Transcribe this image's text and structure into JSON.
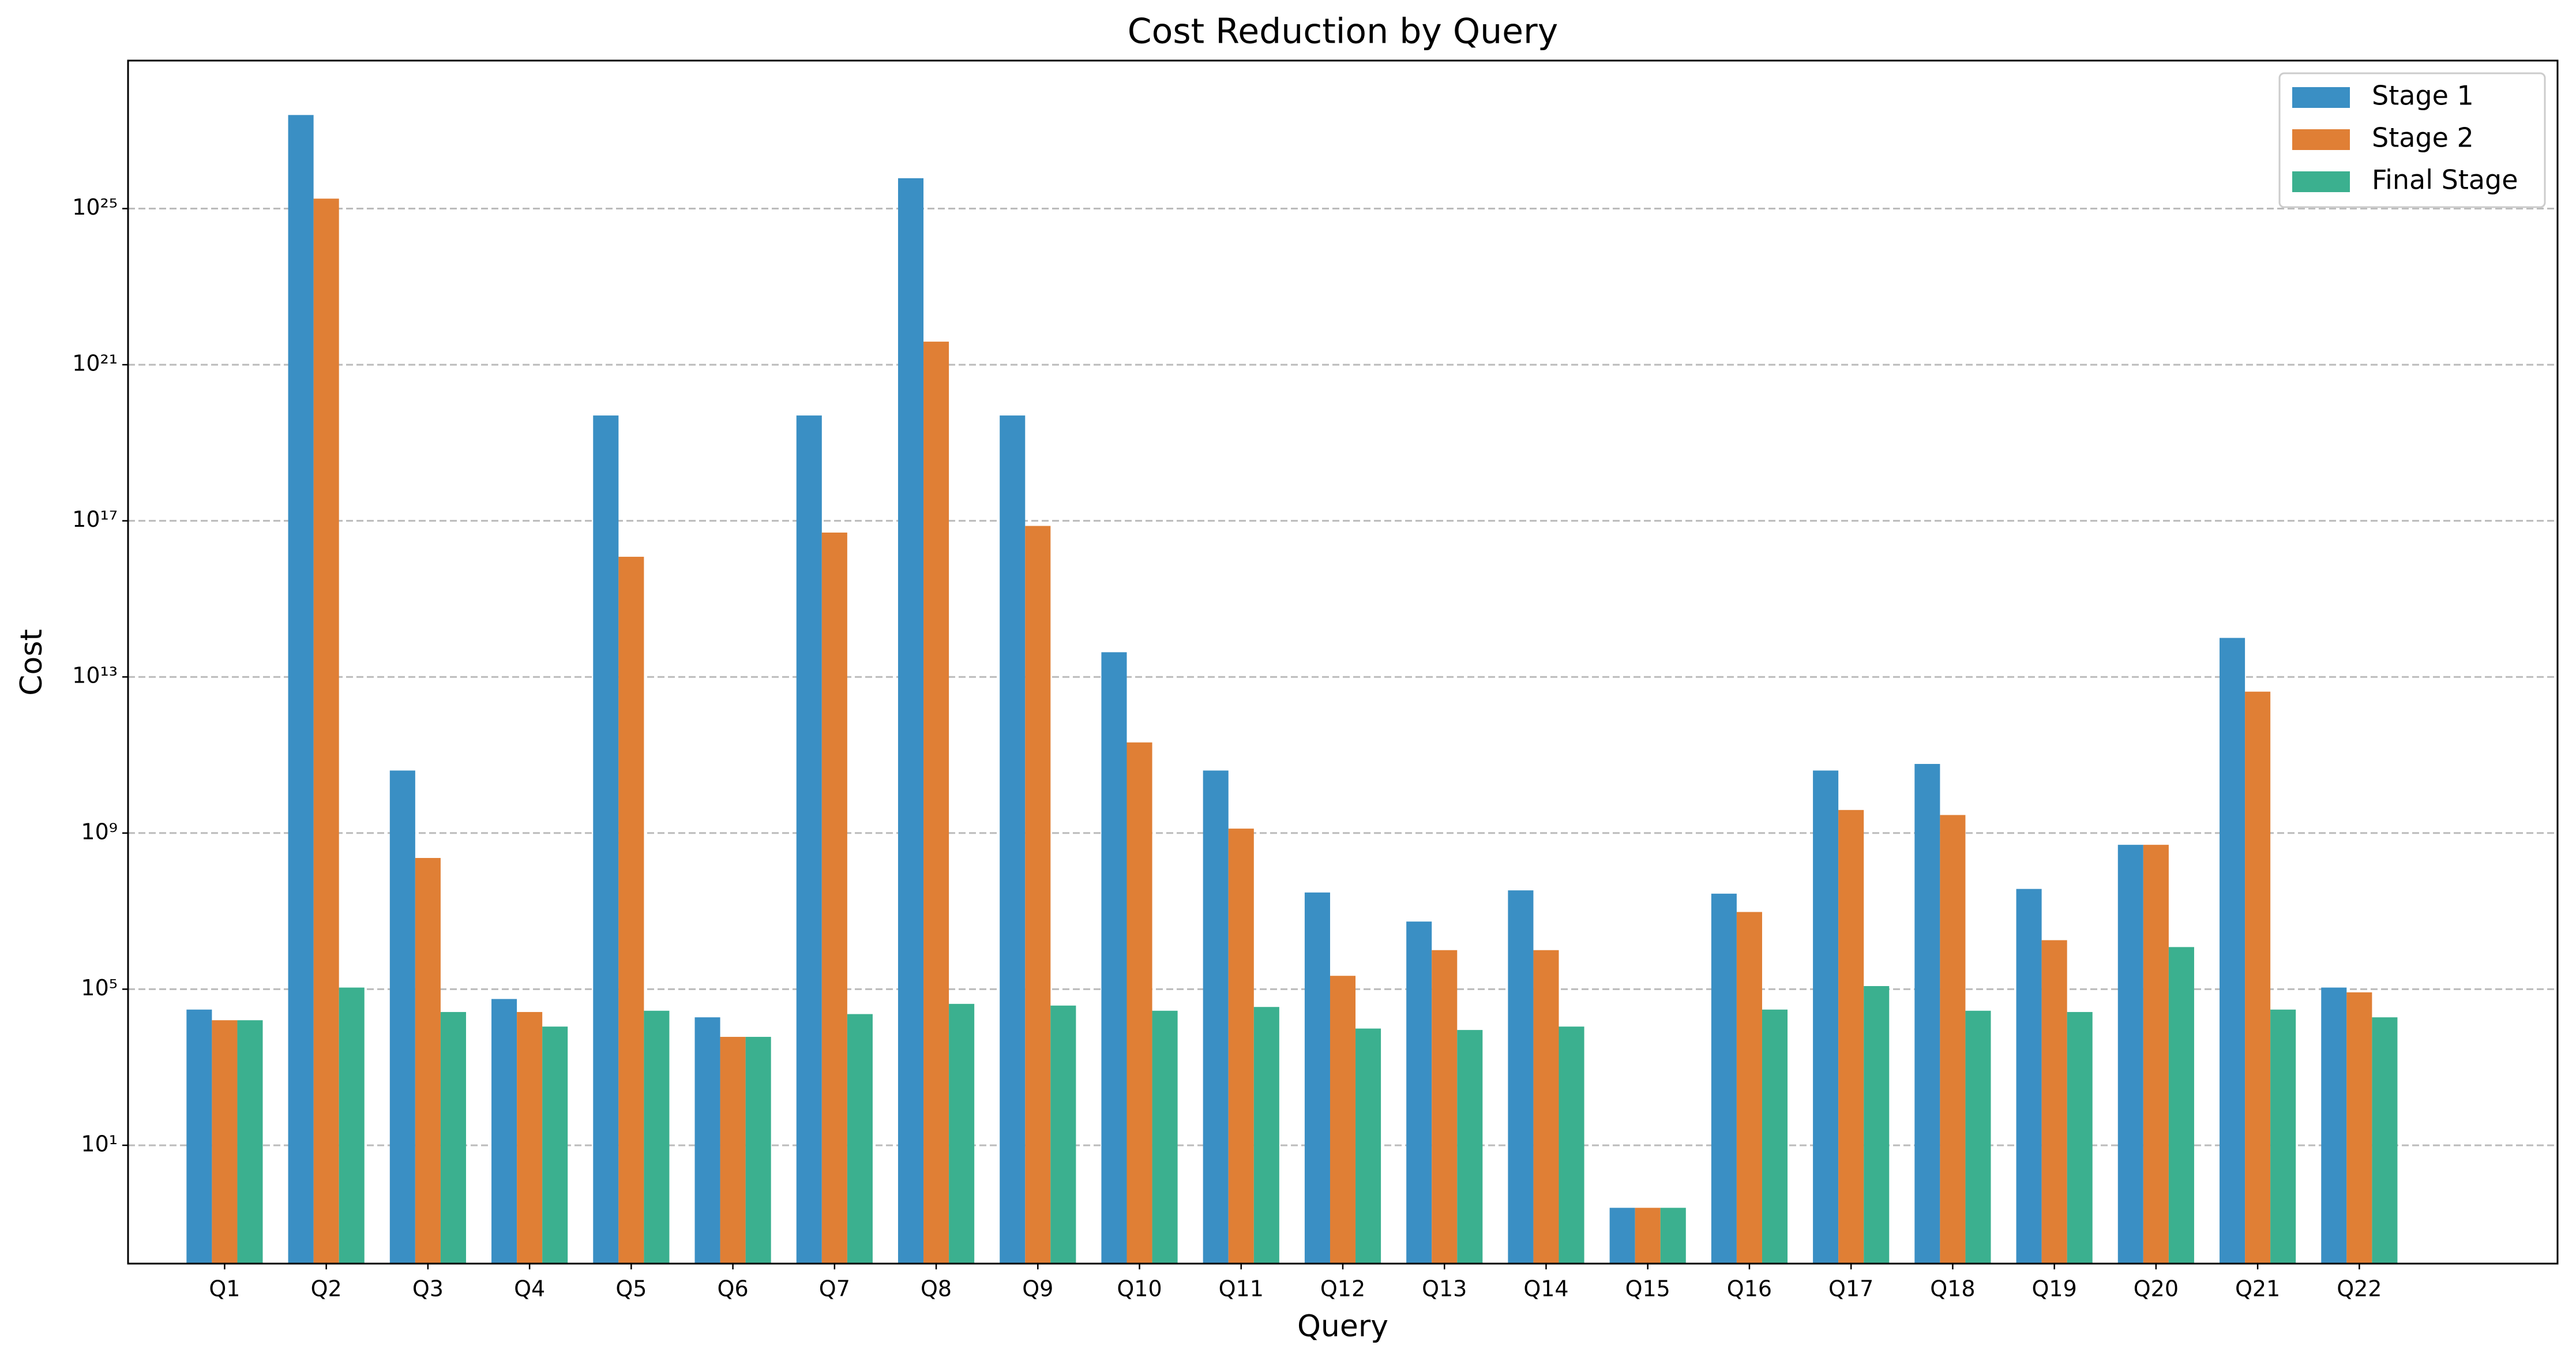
{
  "chart_data": {
    "type": "bar",
    "title": "Cost Reduction by Query",
    "x_label": "Query",
    "y_label": "Cost",
    "log_scale": true,
    "grid": true,
    "legend": "upper right",
    "categories": [
      "Q1",
      "Q2",
      "Q3",
      "Q4",
      "Q5",
      "Q6",
      "Q7",
      "Q8",
      "Q9",
      "Q10",
      "Q11",
      "Q12",
      "Q13",
      "Q14",
      "Q15",
      "Q16",
      "Q17",
      "Q18",
      "Q19",
      "Q20",
      "Q21",
      "Q22"
    ],
    "series": [
      {
        "name": "Stage 1",
        "color": "#3a8fc4",
        "values": [
          30000.0,
          2.5e+27,
          40000000000.0,
          56000.0,
          5e+19,
          19000.0,
          5e+19,
          6e+25,
          5e+19,
          43000000000000.0,
          40000000000.0,
          30000000.0,
          5400000.0,
          34000000.0,
          0.25,
          28000000.0,
          40000000000.0,
          59000000000.0,
          37000000.0,
          500000000.0,
          100000000000000.0,
          110000.0
        ]
      },
      {
        "name": "Stage 2",
        "color": "#e07f35",
        "values": [
          16000.0,
          1.8e+25,
          230000000.0,
          26000.0,
          1.2e+16,
          6000.0,
          5e+16,
          3.9e+21,
          7.4e+16,
          210000000000.0,
          1300000000.0,
          220000.0,
          1000000.0,
          1000000.0,
          0.25,
          9500000.0,
          3900000000.0,
          2900000000.0,
          1800000.0,
          500000000.0,
          4200000000000.0,
          83000.0
        ]
      },
      {
        "name": "Final Stage",
        "color": "#3bb08f",
        "values": [
          16000.0,
          110000.0,
          26000.0,
          11000.0,
          28000.0,
          6000.0,
          23000.0,
          42000.0,
          38000.0,
          28000.0,
          35000.0,
          9800.0,
          9000.0,
          11000.0,
          0.25,
          30000.0,
          120000.0,
          28000.0,
          26000.0,
          1200000.0,
          30000.0,
          19000.0
        ]
      }
    ],
    "ylim": [
      0.0093,
      6.2e+28
    ],
    "yticks": [
      {
        "value": 10,
        "label": "10¹"
      },
      {
        "value": 100000.0,
        "label": "10⁵"
      },
      {
        "value": 1000000000.0,
        "label": "10⁹"
      },
      {
        "value": 10000000000000.0,
        "label": "10¹³"
      },
      {
        "value": 1e+17,
        "label": "10¹⁷"
      },
      {
        "value": 1e+21,
        "label": "10²¹"
      },
      {
        "value": 1e+25,
        "label": "10²⁵"
      }
    ]
  }
}
